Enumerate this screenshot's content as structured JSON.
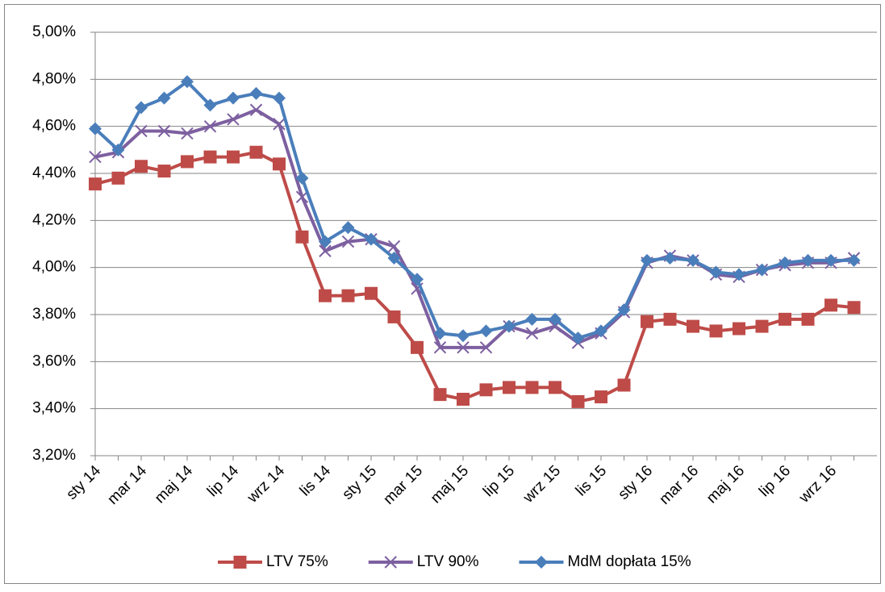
{
  "chart_data": {
    "type": "line",
    "categories": [
      "sty 14",
      null,
      "mar 14",
      null,
      "maj 14",
      null,
      "lip 14",
      null,
      "wrz 14",
      null,
      "lis 14",
      null,
      "sty 15",
      null,
      "mar 15",
      null,
      "maj 15",
      null,
      "lip 15",
      null,
      "wrz 15",
      null,
      "lis 15",
      null,
      "sty 16",
      null,
      "mar 16",
      null,
      "maj 16",
      null,
      "lip 16",
      null,
      "wrz 16",
      null
    ],
    "series": [
      {
        "name": "LTV 75%",
        "color": "#be4b48",
        "marker": "square",
        "values": [
          4.355,
          4.38,
          4.43,
          4.41,
          4.45,
          4.47,
          4.47,
          4.49,
          4.44,
          4.13,
          3.88,
          3.88,
          3.89,
          3.79,
          3.66,
          3.46,
          3.44,
          3.48,
          3.49,
          3.49,
          3.49,
          3.43,
          3.45,
          3.5,
          3.77,
          3.78,
          3.75,
          3.73,
          3.74,
          3.75,
          3.78,
          3.78,
          3.84,
          3.83
        ]
      },
      {
        "name": "LTV 90%",
        "color": "#7d60a0",
        "marker": "x",
        "values": [
          4.47,
          4.49,
          4.58,
          4.58,
          4.57,
          4.6,
          4.63,
          4.67,
          4.61,
          4.3,
          4.07,
          4.11,
          4.12,
          4.09,
          3.91,
          3.66,
          3.66,
          3.66,
          3.75,
          3.72,
          3.75,
          3.68,
          3.72,
          3.81,
          4.02,
          4.05,
          4.03,
          3.97,
          3.96,
          3.99,
          4.01,
          4.02,
          4.02,
          4.04
        ]
      },
      {
        "name": "MdM dopłata 15%",
        "color": "#4a7ebb",
        "marker": "diamond",
        "values": [
          4.59,
          4.5,
          4.68,
          4.72,
          4.79,
          4.69,
          4.72,
          4.74,
          4.72,
          4.38,
          4.11,
          4.17,
          4.12,
          4.04,
          3.95,
          3.72,
          3.71,
          3.73,
          3.75,
          3.78,
          3.78,
          3.7,
          3.73,
          3.82,
          4.03,
          4.04,
          4.03,
          3.98,
          3.97,
          3.99,
          4.02,
          4.03,
          4.03,
          4.03
        ]
      }
    ],
    "ylim": [
      3.2,
      5.0
    ],
    "yticks": [
      {
        "value": 3.2,
        "label": "3,20%"
      },
      {
        "value": 3.4,
        "label": "3,40%"
      },
      {
        "value": 3.6,
        "label": "3,60%"
      },
      {
        "value": 3.8,
        "label": "3,80%"
      },
      {
        "value": 4.0,
        "label": "4,00%"
      },
      {
        "value": 4.2,
        "label": "4,20%"
      },
      {
        "value": 4.4,
        "label": "4,40%"
      },
      {
        "value": 4.6,
        "label": "4,60%"
      },
      {
        "value": 4.8,
        "label": "4,80%"
      },
      {
        "value": 5.0,
        "label": "5,00%"
      }
    ],
    "grid": true,
    "legend": "bottom"
  }
}
